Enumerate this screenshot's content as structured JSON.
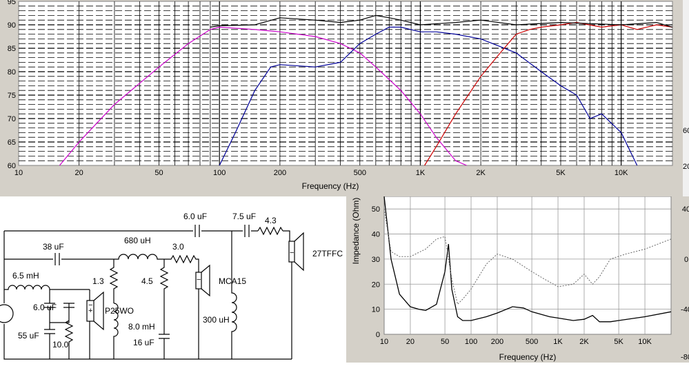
{
  "freq_chart": {
    "xlabel": "Frequency (Hz)",
    "y_ticks": [
      "95",
      "90",
      "85",
      "80",
      "75",
      "70",
      "65",
      "60"
    ],
    "x_ticks": [
      "10",
      "20",
      "50",
      "100",
      "200",
      "500",
      "1K",
      "2K",
      "5K",
      "10K"
    ],
    "right_edge_labels": [
      "60",
      "20"
    ],
    "colors": {
      "sum": "#000000",
      "woofer": "#cc00cc",
      "mid": "#000099",
      "tweeter": "#cc0000",
      "grid": "#000000",
      "plot_bg": "#ffffff"
    }
  },
  "imp_chart": {
    "xlabel": "Frequency (Hz)",
    "ylabel": "Impedance (Ohm)",
    "y_ticks": [
      "50",
      "40",
      "30",
      "20",
      "10",
      "0"
    ],
    "right_ticks": [
      "40",
      "0",
      "-40",
      "-80"
    ],
    "x_ticks": [
      "10",
      "20",
      "50",
      "100",
      "200",
      "500",
      "1K",
      "2K",
      "5K",
      "10K"
    ],
    "colors": {
      "impedance": "#000000",
      "phase": "#666666"
    }
  },
  "chart_data": [
    {
      "type": "line",
      "xlabel": "Frequency (Hz)",
      "ylabel": "",
      "x_scale": "log",
      "xlim": [
        10,
        18000
      ],
      "ylim": [
        60,
        95
      ],
      "grid": true,
      "series": [
        {
          "color": "#cc00cc",
          "x": [
            16,
            20,
            30,
            50,
            70,
            90,
            100,
            150,
            200,
            300,
            400,
            500,
            600,
            800,
            1000,
            1200,
            1500,
            1700
          ],
          "y": [
            60,
            65,
            73,
            81,
            86,
            89,
            89.5,
            89,
            88.5,
            87.5,
            86,
            84,
            81,
            76,
            71,
            66,
            61,
            60
          ]
        },
        {
          "color": "#000099",
          "x": [
            100,
            120,
            150,
            180,
            200,
            300,
            400,
            500,
            600,
            700,
            800,
            1000,
            1200,
            1500,
            2000,
            3000,
            4000,
            5000,
            6000,
            7000,
            8000,
            10000,
            12000
          ],
          "y": [
            60,
            67,
            76,
            81,
            81.5,
            81,
            82,
            86,
            88,
            89.5,
            89.5,
            88.5,
            88.5,
            88,
            87,
            84,
            80,
            77,
            75,
            70,
            71,
            67,
            60
          ]
        },
        {
          "color": "#cc0000",
          "x": [
            1050,
            1200,
            1500,
            2000,
            2500,
            3000,
            3500,
            4000,
            5000,
            6000,
            8000,
            10000,
            12000,
            15000,
            18000
          ],
          "y": [
            60,
            64,
            71,
            79,
            84,
            88,
            89,
            89.5,
            90,
            90.5,
            89.5,
            90,
            89,
            90,
            89.5
          ]
        },
        {
          "color": "#000000",
          "x": [
            10,
            20,
            50,
            90,
            100,
            150,
            200,
            300,
            400,
            500,
            600,
            700,
            800,
            1000,
            1500,
            2000,
            3000,
            5000,
            10000,
            15000,
            18000
          ],
          "y": [
            null,
            null,
            null,
            89.5,
            89.8,
            90,
            91.5,
            91,
            90.5,
            91,
            92,
            91.5,
            91,
            90,
            90.5,
            91,
            90,
            90.5,
            90,
            90.5,
            89.5
          ]
        }
      ]
    },
    {
      "type": "line",
      "xlabel": "Frequency (Hz)",
      "ylabel": "Impedance (Ohm)",
      "x_scale": "log",
      "xlim": [
        10,
        20000
      ],
      "ylim": [
        0,
        55
      ],
      "grid": true,
      "series": [
        {
          "color": "#000000",
          "x": [
            10,
            12,
            15,
            20,
            25,
            30,
            40,
            50,
            55,
            60,
            70,
            80,
            100,
            150,
            200,
            300,
            400,
            500,
            800,
            1000,
            1500,
            2000,
            2500,
            3000,
            4000,
            5000,
            10000,
            20000
          ],
          "y": [
            55,
            30,
            16,
            11,
            10,
            9.5,
            12,
            25,
            36,
            18,
            7,
            5.5,
            5.5,
            7,
            8.5,
            11,
            10.5,
            9,
            7,
            6.5,
            5.5,
            6,
            7.5,
            5,
            5,
            5.5,
            7,
            9
          ]
        },
        {
          "color": "#666666",
          "dashed": true,
          "x": [
            10,
            12,
            15,
            20,
            30,
            40,
            50,
            60,
            70,
            80,
            100,
            150,
            200,
            300,
            500,
            700,
            1000,
            1500,
            2000,
            2500,
            3000,
            4000,
            6000,
            10000,
            20000
          ],
          "y": [
            50,
            33,
            31,
            31,
            34,
            38,
            39,
            22,
            12,
            14,
            18,
            28,
            32,
            30,
            25,
            22,
            19,
            20,
            24,
            20,
            23,
            30,
            32,
            34,
            38
          ]
        }
      ]
    }
  ],
  "schematic": {
    "labels": {
      "c_top": "6.0 uF",
      "c_tw": "7.5 uF",
      "r_tw": "4.3",
      "tweeter": "27TFFC",
      "c_38": "38 uF",
      "l_680": "680 uH",
      "r_30": "3.0",
      "mid": "MCA15",
      "l_65": "6.5 mH",
      "c_60": "6.0 uF",
      "c_55": "55 uF",
      "r_100": "10.0",
      "r_13": "1.3",
      "woofer": "P25WO",
      "l_80": "8.0 mH",
      "r_45": "4.5",
      "c_16": "16 uF",
      "l_300": "300 uH"
    },
    "polarity_plus": "+",
    "polarity_minus": "−"
  }
}
